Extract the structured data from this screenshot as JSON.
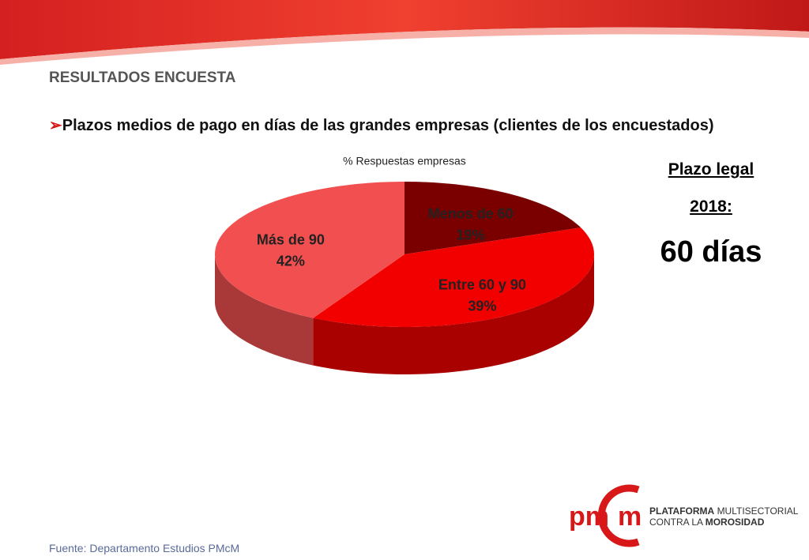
{
  "header": {
    "title": "RESULTADOS ENCUESTA",
    "bullet": "Plazos medios de pago en días de las grandes empresas (clientes de los encuestados)"
  },
  "chart_data": {
    "type": "pie",
    "title": "% Respuestas empresas",
    "categories": [
      "Menos de 60",
      "Entre 60 y 90",
      "Más de 90"
    ],
    "values": [
      19,
      39,
      42
    ],
    "value_labels": [
      "19%",
      "39%",
      "42%"
    ],
    "colors": [
      "#7a0000",
      "#f20000",
      "#f25050"
    ]
  },
  "side": {
    "line1": "Plazo legal",
    "line2": "2018:",
    "big": "60 días"
  },
  "logo": {
    "left": "pm",
    "right": "m",
    "line1_bold": "PLATAFORMA",
    "line1": "MULTISECTORIAL",
    "line2": "CONTRA LA",
    "line2_bold": "MOROSIDAD"
  },
  "footer": "Fuente: Departamento Estudios PMcM"
}
